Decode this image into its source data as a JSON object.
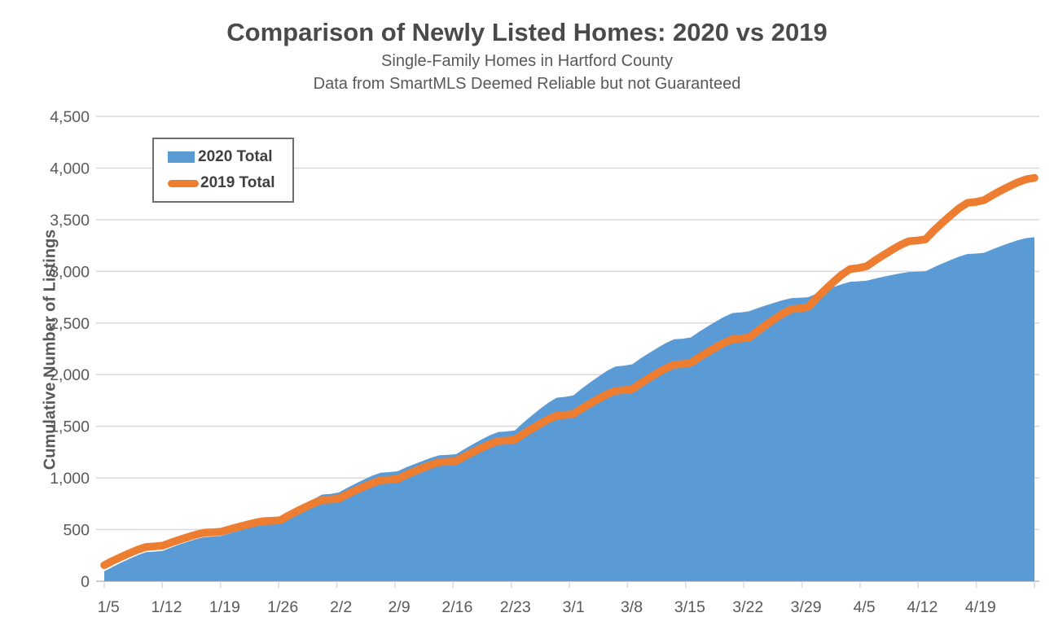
{
  "header": {
    "title": "Comparison of Newly Listed Homes: 2020 vs 2019",
    "subtitle1": "Single-Family Homes in Hartford County",
    "subtitle2": "Data from SmartMLS Deemed Reliable but not Guaranteed"
  },
  "colors": {
    "area_2020": "#5B9BD5",
    "line_2019": "#ED7D31",
    "gridline": "#D9D9D9",
    "axis_line": "#CCCCCC",
    "tick_label": "#595959",
    "title_text": "#4A4A4A",
    "legend_border": "#6E6E6E"
  },
  "chart_data": {
    "type": "area",
    "title": "Comparison of Newly Listed Homes: 2020 vs 2019",
    "subtitle": [
      "Single-Family Homes in Hartford County",
      "Data from SmartMLS Deemed Reliable but not Guaranteed"
    ],
    "xlabel": "",
    "ylabel": "Cumulative Number of Listings",
    "ylim": [
      0,
      4500
    ],
    "ytick_step": 500,
    "grid": true,
    "legend_position": "top-left",
    "y_tick_labels": [
      "0",
      "500",
      "1,000",
      "1,500",
      "2,000",
      "2,500",
      "3,000",
      "3,500",
      "4,000",
      "4,500"
    ],
    "x_tick_labels": [
      "1/5",
      "1/12",
      "1/19",
      "1/26",
      "2/2",
      "2/9",
      "2/16",
      "2/23",
      "3/1",
      "3/8",
      "3/15",
      "3/22",
      "3/29",
      "4/5",
      "4/12",
      "4/19"
    ],
    "dates": [
      "1/5",
      "1/6",
      "1/7",
      "1/8",
      "1/9",
      "1/10",
      "1/11",
      "1/12",
      "1/13",
      "1/14",
      "1/15",
      "1/16",
      "1/17",
      "1/18",
      "1/19",
      "1/20",
      "1/21",
      "1/22",
      "1/23",
      "1/24",
      "1/25",
      "1/26",
      "1/27",
      "1/28",
      "1/29",
      "1/30",
      "1/31",
      "2/1",
      "2/2",
      "2/3",
      "2/4",
      "2/5",
      "2/6",
      "2/7",
      "2/8",
      "2/9",
      "2/10",
      "2/11",
      "2/12",
      "2/13",
      "2/14",
      "2/15",
      "2/16",
      "2/17",
      "2/18",
      "2/19",
      "2/20",
      "2/21",
      "2/22",
      "2/23",
      "2/24",
      "2/25",
      "2/26",
      "2/27",
      "2/28",
      "2/29",
      "3/1",
      "3/2",
      "3/3",
      "3/4",
      "3/5",
      "3/6",
      "3/7",
      "3/8",
      "3/9",
      "3/10",
      "3/11",
      "3/12",
      "3/13",
      "3/14",
      "3/15",
      "3/16",
      "3/17",
      "3/18",
      "3/19",
      "3/20",
      "3/21",
      "3/22",
      "3/23",
      "3/24",
      "3/25",
      "3/26",
      "3/27",
      "3/28",
      "3/29",
      "3/30",
      "3/31",
      "4/1",
      "4/2",
      "4/3",
      "4/4",
      "4/5",
      "4/6",
      "4/7",
      "4/8",
      "4/9",
      "4/10",
      "4/11",
      "4/12",
      "4/13",
      "4/14",
      "4/15",
      "4/16",
      "4/17",
      "4/18",
      "4/19",
      "4/20",
      "4/21",
      "4/22",
      "4/23",
      "4/24",
      "4/25"
    ],
    "series": [
      {
        "name": "2020 Total",
        "render": "area",
        "color": "#5B9BD5",
        "values": [
          95,
          139,
          179,
          217,
          253,
          281,
          287,
          295,
          327,
          356,
          383,
          409,
          429,
          433,
          440,
          465,
          488,
          510,
          531,
          547,
          550,
          555,
          622,
          683,
          741,
          796,
          839,
          846,
          860,
          905,
          946,
          985,
          1022,
          1051,
          1056,
          1065,
          1101,
          1134,
          1165,
          1195,
          1219,
          1223,
          1230,
          1281,
          1327,
          1371,
          1412,
          1444,
          1450,
          1460,
          1535,
          1603,
          1668,
          1729,
          1777,
          1785,
          1800,
          1866,
          1926,
          1983,
          2037,
          2079,
          2086,
          2100,
          2157,
          2209,
          2258,
          2305,
          2342,
          2348,
          2360,
          2416,
          2467,
          2515,
          2561,
          2597,
          2603,
          2615,
          2645,
          2672,
          2698,
          2722,
          2741,
          2744,
          2750,
          2785,
          2817,
          2847,
          2876,
          2899,
          2903,
          2910,
          2930,
          2948,
          2965,
          2981,
          2994,
          2996,
          3000,
          3040,
          3076,
          3110,
          3142,
          3168,
          3172,
          3180,
          3214,
          3245,
          3274,
          3301,
          3322,
          3330
        ]
      },
      {
        "name": "2019 Total",
        "render": "line",
        "color": "#ED7D31",
        "values": [
          155,
          197,
          235,
          271,
          305,
          332,
          337,
          345,
          375,
          402,
          428,
          452,
          471,
          474,
          480,
          504,
          526,
          547,
          567,
          582,
          585,
          590,
          636,
          678,
          718,
          756,
          786,
          791,
          800,
          842,
          880,
          916,
          950,
          977,
          982,
          990,
          1029,
          1064,
          1097,
          1128,
          1153,
          1157,
          1165,
          1210,
          1251,
          1290,
          1327,
          1356,
          1361,
          1370,
          1425,
          1475,
          1523,
          1568,
          1603,
          1609,
          1620,
          1673,
          1721,
          1767,
          1810,
          1844,
          1850,
          1860,
          1916,
          1967,
          2015,
          2061,
          2097,
          2103,
          2115,
          2169,
          2218,
          2265,
          2309,
          2344,
          2350,
          2360,
          2425,
          2484,
          2540,
          2593,
          2634,
          2641,
          2655,
          2742,
          2821,
          2896,
          2967,
          3022,
          3032,
          3050,
          3107,
          3159,
          3208,
          3255,
          3292,
          3298,
          3310,
          3394,
          3470,
          3542,
          3610,
          3663,
          3672,
          3690,
          3738,
          3782,
          3823,
          3861,
          3891,
          3905
        ]
      }
    ]
  },
  "legend": {
    "item_2020": "2020 Total",
    "item_2019": "2019 Total"
  }
}
